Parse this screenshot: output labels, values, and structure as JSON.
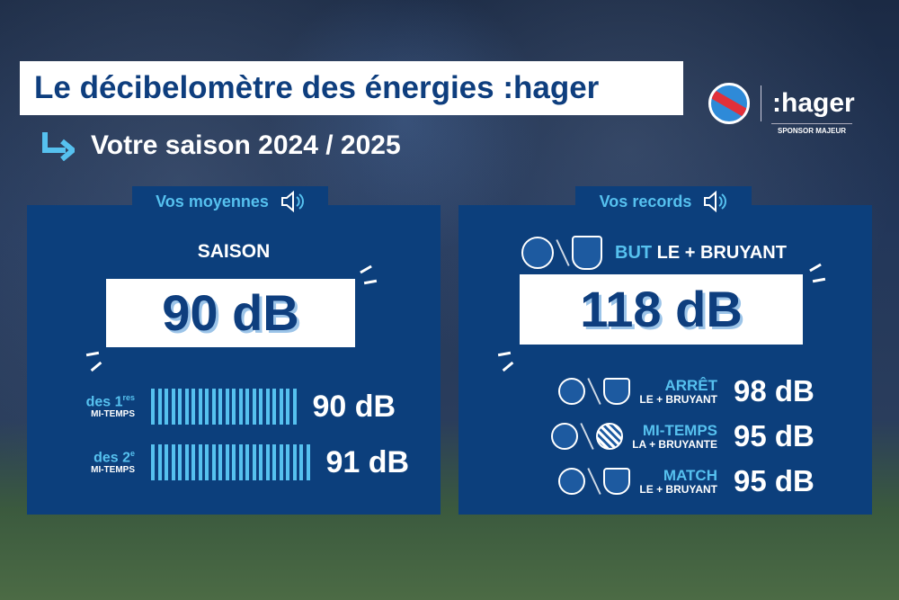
{
  "header": {
    "title": "Le décibelomètre des énergies :hager",
    "subtitle": "Votre saison 2024 / 2025",
    "brand": ":hager",
    "sponsor_label": "SPONSOR MAJEUR"
  },
  "averages": {
    "tab_label": "Vos moyennes",
    "section_label": "SAISON",
    "season_value": "90 dB",
    "rows": [
      {
        "label": "des 1",
        "sup": "res",
        "sublabel": "MI-TEMPS",
        "value": "90 dB",
        "bars": 22
      },
      {
        "label": "des 2",
        "sup": "e",
        "sublabel": "MI-TEMPS",
        "value": "91 dB",
        "bars": 24
      }
    ]
  },
  "records": {
    "tab_label": "Vos records",
    "headline_accent": "BUT",
    "headline_rest": " LE + BRUYANT",
    "headline_value": "118 dB",
    "rows": [
      {
        "title": "ARRÊT",
        "subtitle": "LE + BRUYANT",
        "value": "98 dB",
        "opponent": "asse"
      },
      {
        "title": "MI-TEMPS",
        "subtitle": "LA + BRUYANTE",
        "value": "95 dB",
        "opponent": "montpellier"
      },
      {
        "title": "MATCH",
        "subtitle": "LE + BRUYANT",
        "value": "95 dB",
        "opponent": "asse"
      }
    ]
  },
  "colors": {
    "panel": "#0c3f7c",
    "accent": "#56c1ef",
    "title_text": "#0e3e7e"
  }
}
